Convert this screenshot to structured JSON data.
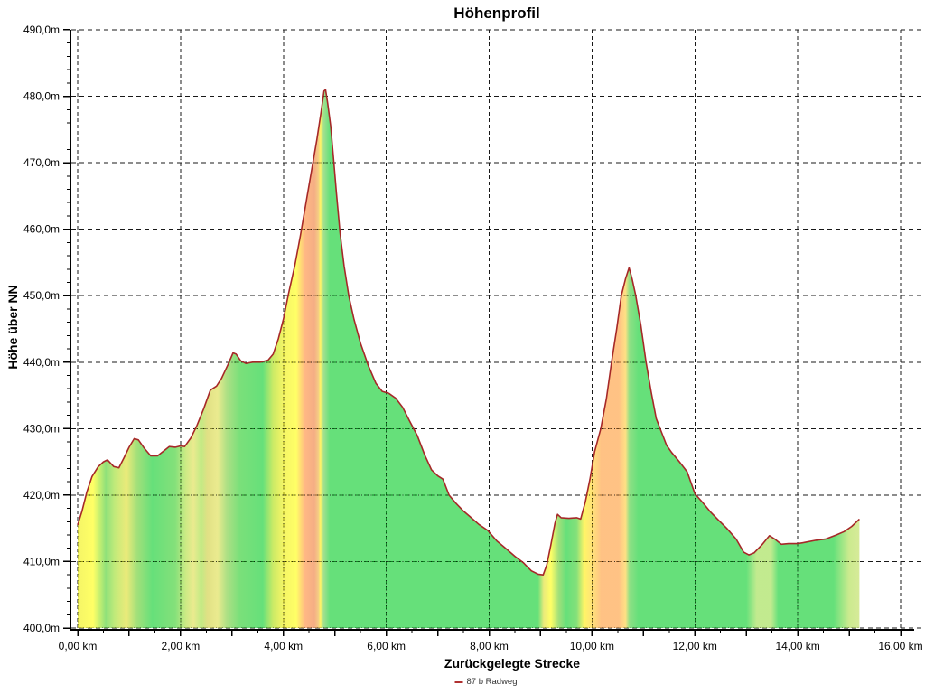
{
  "window": {
    "background": "#ffffff"
  },
  "chart_data": {
    "type": "area",
    "title": "Höhenprofil",
    "xlabel": "Zurückgelegte Strecke",
    "ylabel": "Höhe über NN",
    "legend": [
      {
        "label": "87 b Radweg",
        "color": "#b03030"
      }
    ],
    "x_axis": {
      "unit": "km",
      "min": 0,
      "max": 16,
      "major_step": 2,
      "minor_step": 0.5,
      "tick_labels": [
        "0,00 km",
        "2,00 km",
        "4,00 km",
        "6,00 km",
        "8,00 km",
        "10,00 km",
        "12,00 km",
        "14,00 km",
        "16,00 km"
      ]
    },
    "y_axis": {
      "unit": "m",
      "min": 400,
      "max": 490,
      "major_step": 10,
      "minor_step": 2,
      "tick_labels": [
        "400,0m",
        "410,0m",
        "420,0m",
        "430,0m",
        "440,0m",
        "450,0m",
        "460,0m",
        "470,0m",
        "480,0m",
        "490,0m"
      ]
    },
    "grid": {
      "horizontal_style": "dashed",
      "vertical_style": "dashed",
      "color": "#000000"
    },
    "line_color": "#a62828",
    "fill_opacity": 0.6,
    "profile_start_km": 0.0,
    "profile_end_km": 15.2,
    "slope_fill_stops": [
      [
        0.0,
        "#eeee00"
      ],
      [
        0.3,
        "#ffff00"
      ],
      [
        0.55,
        "#44cc22"
      ],
      [
        0.72,
        "#99dd22"
      ],
      [
        0.95,
        "#dddd22"
      ],
      [
        1.15,
        "#66cc22"
      ],
      [
        1.45,
        "#00cc22"
      ],
      [
        1.9,
        "#33cc22"
      ],
      [
        2.1,
        "#aadd33"
      ],
      [
        2.25,
        "#dddd44"
      ],
      [
        2.4,
        "#99dd33"
      ],
      [
        2.52,
        "#cccc33"
      ],
      [
        2.72,
        "#dddd44"
      ],
      [
        2.9,
        "#77cc33"
      ],
      [
        3.15,
        "#22cc22"
      ],
      [
        3.6,
        "#00cc22"
      ],
      [
        3.8,
        "#aadd00"
      ],
      [
        4.0,
        "#eeee00"
      ],
      [
        4.25,
        "#ffff00"
      ],
      [
        4.42,
        "#ff8833"
      ],
      [
        4.6,
        "#ee7733"
      ],
      [
        4.68,
        "#eeaa33"
      ],
      [
        4.72,
        "#ffee00"
      ],
      [
        4.78,
        "#66cc44"
      ],
      [
        4.9,
        "#00cc22"
      ],
      [
        8.95,
        "#00cc22"
      ],
      [
        9.06,
        "#dddd22"
      ],
      [
        9.2,
        "#ffff00"
      ],
      [
        9.35,
        "#66cc22"
      ],
      [
        9.5,
        "#00cc22"
      ],
      [
        9.7,
        "#33cc22"
      ],
      [
        9.85,
        "#ffee00"
      ],
      [
        10.02,
        "#ffcc22"
      ],
      [
        10.18,
        "#ff9933"
      ],
      [
        10.52,
        "#ff9933"
      ],
      [
        10.65,
        "#ffcc33"
      ],
      [
        10.73,
        "#44cc33"
      ],
      [
        10.9,
        "#00cc22"
      ],
      [
        13.0,
        "#00cc22"
      ],
      [
        13.2,
        "#99dd44"
      ],
      [
        13.48,
        "#99dd44"
      ],
      [
        13.62,
        "#00cc22"
      ],
      [
        14.7,
        "#00cc22"
      ],
      [
        15.0,
        "#aadd44"
      ],
      [
        15.2,
        "#bbdd55"
      ]
    ],
    "series": [
      {
        "name": "87 b Radweg",
        "points_km_m": [
          [
            0.0,
            415.5
          ],
          [
            0.08,
            417.5
          ],
          [
            0.18,
            420.5
          ],
          [
            0.28,
            422.8
          ],
          [
            0.4,
            424.3
          ],
          [
            0.5,
            425.0
          ],
          [
            0.58,
            425.3
          ],
          [
            0.7,
            424.3
          ],
          [
            0.8,
            424.1
          ],
          [
            0.9,
            425.6
          ],
          [
            1.0,
            427.2
          ],
          [
            1.1,
            428.5
          ],
          [
            1.18,
            428.3
          ],
          [
            1.3,
            427.0
          ],
          [
            1.42,
            425.9
          ],
          [
            1.55,
            425.9
          ],
          [
            1.65,
            426.5
          ],
          [
            1.78,
            427.3
          ],
          [
            1.9,
            427.2
          ],
          [
            2.0,
            427.4
          ],
          [
            2.08,
            427.3
          ],
          [
            2.2,
            428.6
          ],
          [
            2.32,
            430.5
          ],
          [
            2.45,
            433.0
          ],
          [
            2.58,
            435.8
          ],
          [
            2.7,
            436.4
          ],
          [
            2.8,
            437.6
          ],
          [
            2.92,
            439.6
          ],
          [
            3.02,
            441.4
          ],
          [
            3.08,
            441.2
          ],
          [
            3.17,
            440.2
          ],
          [
            3.27,
            439.8
          ],
          [
            3.4,
            440.0
          ],
          [
            3.55,
            440.0
          ],
          [
            3.7,
            440.3
          ],
          [
            3.8,
            441.2
          ],
          [
            3.9,
            443.5
          ],
          [
            4.0,
            446.5
          ],
          [
            4.1,
            450.3
          ],
          [
            4.22,
            454.5
          ],
          [
            4.33,
            459.0
          ],
          [
            4.45,
            464.5
          ],
          [
            4.55,
            469.0
          ],
          [
            4.65,
            473.5
          ],
          [
            4.73,
            477.5
          ],
          [
            4.79,
            480.8
          ],
          [
            4.82,
            481.0
          ],
          [
            4.86,
            479.0
          ],
          [
            4.92,
            475.5
          ],
          [
            4.97,
            471.0
          ],
          [
            5.03,
            465.5
          ],
          [
            5.1,
            459.5
          ],
          [
            5.18,
            454.5
          ],
          [
            5.27,
            450.0
          ],
          [
            5.37,
            446.5
          ],
          [
            5.5,
            442.8
          ],
          [
            5.65,
            439.5
          ],
          [
            5.8,
            436.8
          ],
          [
            5.92,
            435.6
          ],
          [
            6.05,
            435.3
          ],
          [
            6.18,
            434.6
          ],
          [
            6.32,
            433.2
          ],
          [
            6.45,
            431.2
          ],
          [
            6.6,
            429.0
          ],
          [
            6.75,
            426.0
          ],
          [
            6.88,
            423.8
          ],
          [
            7.0,
            422.9
          ],
          [
            7.1,
            422.4
          ],
          [
            7.22,
            420.0
          ],
          [
            7.35,
            418.8
          ],
          [
            7.5,
            417.6
          ],
          [
            7.62,
            416.8
          ],
          [
            7.8,
            415.6
          ],
          [
            7.97,
            414.7
          ],
          [
            8.15,
            413.1
          ],
          [
            8.32,
            412.0
          ],
          [
            8.5,
            410.8
          ],
          [
            8.67,
            409.8
          ],
          [
            8.82,
            408.6
          ],
          [
            8.95,
            408.1
          ],
          [
            9.05,
            408.0
          ],
          [
            9.12,
            409.5
          ],
          [
            9.2,
            412.5
          ],
          [
            9.28,
            415.8
          ],
          [
            9.33,
            417.1
          ],
          [
            9.4,
            416.6
          ],
          [
            9.55,
            416.5
          ],
          [
            9.7,
            416.6
          ],
          [
            9.78,
            416.4
          ],
          [
            9.87,
            419.0
          ],
          [
            9.96,
            422.4
          ],
          [
            10.05,
            426.5
          ],
          [
            10.17,
            430.0
          ],
          [
            10.28,
            434.5
          ],
          [
            10.38,
            440.0
          ],
          [
            10.48,
            445.0
          ],
          [
            10.57,
            450.0
          ],
          [
            10.65,
            452.5
          ],
          [
            10.72,
            454.2
          ],
          [
            10.78,
            452.5
          ],
          [
            10.85,
            450.0
          ],
          [
            10.95,
            445.5
          ],
          [
            11.05,
            440.0
          ],
          [
            11.15,
            435.5
          ],
          [
            11.25,
            431.5
          ],
          [
            11.35,
            429.5
          ],
          [
            11.45,
            427.5
          ],
          [
            11.55,
            426.4
          ],
          [
            11.7,
            425.0
          ],
          [
            11.85,
            423.5
          ],
          [
            12.0,
            420.2
          ],
          [
            12.15,
            418.9
          ],
          [
            12.3,
            417.5
          ],
          [
            12.45,
            416.3
          ],
          [
            12.62,
            415.0
          ],
          [
            12.8,
            413.4
          ],
          [
            12.95,
            411.4
          ],
          [
            13.05,
            411.0
          ],
          [
            13.15,
            411.3
          ],
          [
            13.3,
            412.5
          ],
          [
            13.45,
            413.9
          ],
          [
            13.55,
            413.4
          ],
          [
            13.68,
            412.6
          ],
          [
            13.82,
            412.7
          ],
          [
            14.0,
            412.7
          ],
          [
            14.15,
            412.9
          ],
          [
            14.35,
            413.2
          ],
          [
            14.55,
            413.4
          ],
          [
            14.75,
            414.0
          ],
          [
            14.9,
            414.5
          ],
          [
            15.05,
            415.3
          ],
          [
            15.2,
            416.4
          ]
        ]
      }
    ]
  }
}
